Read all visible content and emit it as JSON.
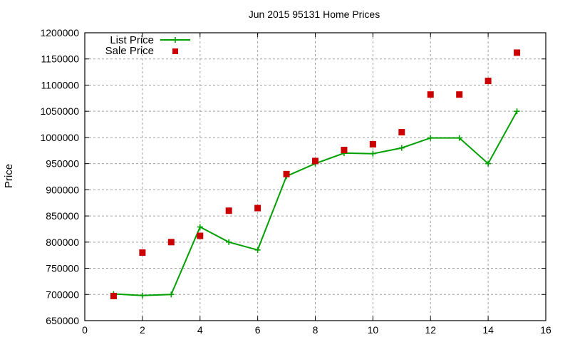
{
  "chart_data": {
    "type": "line",
    "title": "Jun 2015 95131 Home Prices",
    "xlabel": "",
    "ylabel": "Price",
    "xlim": [
      0,
      16
    ],
    "ylim": [
      650000,
      1200000
    ],
    "x_ticks": [
      "0",
      "2",
      "4",
      "6",
      "8",
      "10",
      "12",
      "14",
      "16"
    ],
    "y_ticks": [
      "650000",
      "700000",
      "750000",
      "800000",
      "850000",
      "900000",
      "950000",
      "1000000",
      "1050000",
      "1100000",
      "1150000",
      "1200000"
    ],
    "grid": true,
    "legend_position": "top-left",
    "x": [
      1,
      2,
      3,
      4,
      5,
      6,
      7,
      8,
      9,
      10,
      11,
      12,
      13,
      14,
      15
    ],
    "series": [
      {
        "name": "List Price",
        "style": "line+points",
        "marker": "plus",
        "color": "#00a000",
        "values": [
          701000,
          698000,
          700000,
          829000,
          800000,
          785000,
          926000,
          950000,
          970000,
          969000,
          980000,
          999000,
          999000,
          950000,
          1050000
        ]
      },
      {
        "name": "Sale Price",
        "style": "points",
        "marker": "square",
        "color": "#cc0000",
        "values": [
          697000,
          780000,
          800000,
          812000,
          860000,
          865000,
          930000,
          955000,
          976000,
          987000,
          1010000,
          1082000,
          1082000,
          1108000,
          1162000
        ]
      }
    ]
  },
  "legend": {
    "items": [
      {
        "label": "List Price"
      },
      {
        "label": "Sale Price"
      }
    ]
  }
}
